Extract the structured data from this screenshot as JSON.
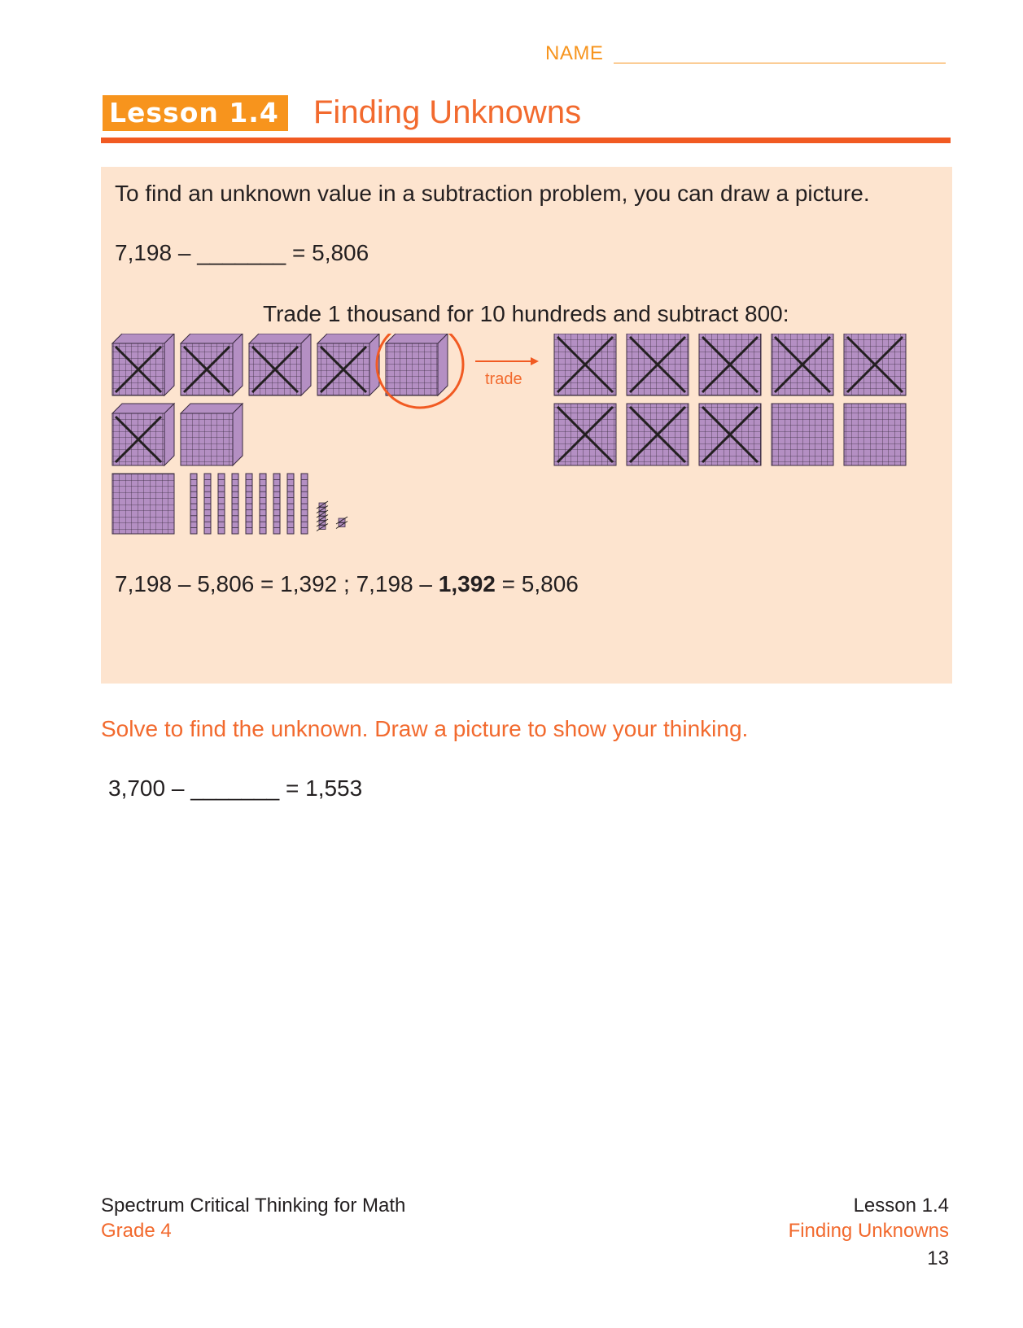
{
  "header": {
    "name_label": "NAME",
    "lesson_badge": "Lesson 1.4",
    "lesson_title": "Finding Unknowns"
  },
  "example": {
    "intro": "To find an unknown value in a subtraction problem, you can draw a picture.",
    "problem": "7,198 – _______ = 5,806",
    "trade_caption": "Trade 1 thousand for 10 hundreds and subtract 800:",
    "trade_label": "trade",
    "answer_part1": "7,198 – 5,806 = 1,392 ; 7,198 – ",
    "answer_bold": "1,392",
    "answer_part2": " = 5,806",
    "model": {
      "thousand_cubes": 7,
      "thousand_cubes_crossed": 5,
      "hundred_flats_traded": 10,
      "hundred_flats_crossed": 8,
      "extra_hundred_flats": 1,
      "ten_rods": 9,
      "unit_cubes": 8,
      "colors": {
        "block": "#b48fc3",
        "grid": "#3a2b40",
        "cross": "#231f20",
        "accent": "#f15a22",
        "box": "#fde4cf"
      }
    }
  },
  "exercise": {
    "instruction": "Solve to find the unknown. Draw a picture to show your thinking.",
    "problem": "3,700 – _______ = 1,553"
  },
  "footer": {
    "book": "Spectrum Critical Thinking for Math",
    "grade": "Grade 4",
    "lesson": "Lesson 1.4",
    "topic": "Finding Unknowns",
    "page": "13"
  }
}
